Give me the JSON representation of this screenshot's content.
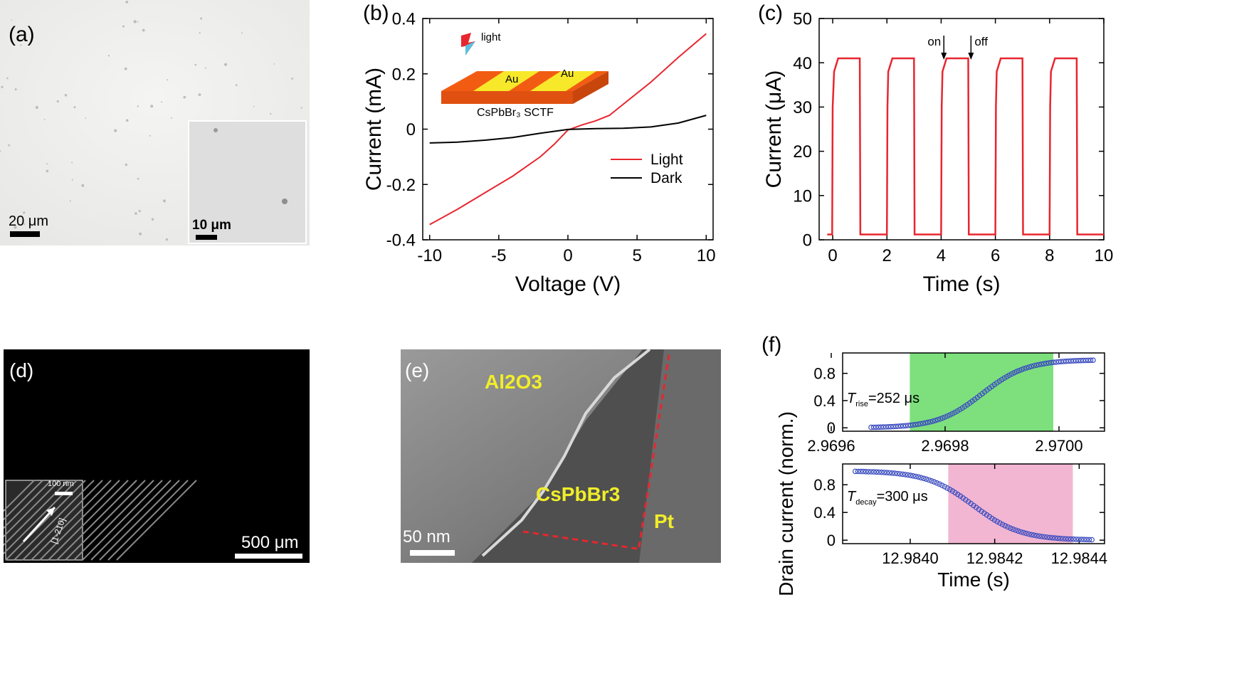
{
  "panels": {
    "a": {
      "label": "(a)",
      "scalebar_main": "20 μm",
      "scalebar_inset": "10 μm"
    },
    "b": {
      "label": "(b)"
    },
    "c": {
      "label": "(c)"
    },
    "d": {
      "label": "(d)",
      "scalebar_main": "500 μm",
      "scalebar_inset": "100 nm",
      "inset_direction": "[1-210]"
    },
    "e": {
      "label": "(e)",
      "scalebar": "50 nm",
      "labels": [
        "Al2O3",
        "CsPbBr3",
        "Pt"
      ]
    },
    "f": {
      "label": "(f)"
    }
  },
  "chart_data": [
    {
      "id": "b",
      "type": "line",
      "xlabel": "Voltage (V)",
      "ylabel": "Current (mA)",
      "xlim": [
        -10.5,
        10.5
      ],
      "ylim": [
        -0.4,
        0.4
      ],
      "xticks": [
        -10,
        -5,
        0,
        5,
        10
      ],
      "xtick_labels": [
        "-10",
        "-5",
        "0",
        "5",
        "10"
      ],
      "yticks": [
        -0.4,
        -0.2,
        0,
        0.2,
        0.4
      ],
      "ytick_labels": [
        "-0.4",
        "-0.2",
        "0",
        "0.2",
        "0.4"
      ],
      "legend_position": "right",
      "inset": {
        "light_label": "light",
        "electrode_label": "Au",
        "film_label": "CsPbBr₃ SCTF"
      },
      "series": [
        {
          "name": "Light",
          "color": "#e8262f",
          "x": [
            -10,
            -8,
            -6,
            -4,
            -2,
            -1,
            0,
            1,
            2,
            3,
            4,
            6,
            8,
            10
          ],
          "y": [
            -0.345,
            -0.29,
            -0.23,
            -0.17,
            -0.1,
            -0.055,
            -0.003,
            0.015,
            0.03,
            0.05,
            0.09,
            0.17,
            0.26,
            0.345
          ]
        },
        {
          "name": "Dark",
          "color": "#000000",
          "x": [
            -10,
            -8,
            -6,
            -4,
            -2,
            0,
            2,
            4,
            6,
            8,
            10
          ],
          "y": [
            -0.05,
            -0.047,
            -0.04,
            -0.03,
            -0.015,
            -0.001,
            0.002,
            0.003,
            0.008,
            0.022,
            0.05
          ]
        }
      ]
    },
    {
      "id": "c",
      "type": "line",
      "xlabel": "Time (s)",
      "ylabel": "Current (μA)",
      "xlim": [
        -0.5,
        10
      ],
      "ylim": [
        0,
        50
      ],
      "xticks": [
        0,
        2,
        4,
        6,
        8,
        10
      ],
      "xtick_labels": [
        "0",
        "2",
        "4",
        "6",
        "8",
        "10"
      ],
      "yticks": [
        0,
        10,
        20,
        30,
        40,
        50
      ],
      "ytick_labels": [
        "0",
        "10",
        "20",
        "30",
        "40",
        "50"
      ],
      "annotations": [
        {
          "text": "on",
          "x": 4.1
        },
        {
          "text": "off",
          "x": 5.1
        }
      ],
      "series": [
        {
          "name": "",
          "color": "#e8262f",
          "x": [
            -0.2,
            -0.02,
            0.0,
            0.05,
            0.2,
            1.0,
            1.02,
            2.0,
            2.02,
            2.05,
            2.2,
            3.0,
            3.02,
            4.0,
            4.02,
            4.05,
            4.2,
            5.0,
            5.02,
            6.0,
            6.02,
            6.05,
            6.2,
            7.0,
            7.02,
            8.0,
            8.02,
            8.05,
            8.2,
            9.0,
            9.02,
            10.0
          ],
          "y": [
            1.2,
            1.2,
            30,
            38,
            41,
            41,
            1.2,
            1.2,
            30,
            38,
            41,
            41,
            1.2,
            1.2,
            30,
            38,
            41,
            41,
            1.2,
            1.2,
            30,
            38,
            41,
            41,
            1.2,
            1.2,
            30,
            38,
            41,
            41,
            1.2,
            1.2
          ]
        }
      ]
    },
    {
      "id": "f-top",
      "type": "scatter",
      "xlabel": "",
      "ylabel": "Drain current (norm.)",
      "xlim": [
        2.96962,
        2.97008
      ],
      "ylim": [
        -0.05,
        1.1
      ],
      "xticks": [
        2.9696,
        2.9698,
        2.97
      ],
      "xtick_labels": [
        "2.9696",
        "2.9698",
        "2.9700"
      ],
      "yticks": [
        0,
        0.4,
        0.8
      ],
      "ytick_labels": [
        "0",
        "0.4",
        "0.8"
      ],
      "annotation": {
        "symbol": "T",
        "subscript": "rise",
        "value": "=252 μs"
      },
      "highlight": {
        "from": 2.969738,
        "to": 2.96999,
        "color": "#7de07d"
      },
      "series": [
        {
          "name": "",
          "color": "#3b4cc0",
          "x_start": 2.96967,
          "x_end": 2.97006,
          "y_start": 0.0,
          "y_end": 1.0,
          "shape": "sigmoid-rise"
        }
      ]
    },
    {
      "id": "f-bottom",
      "type": "scatter",
      "xlabel": "Time (s)",
      "ylabel": "",
      "xlim": [
        12.98384,
        12.98446
      ],
      "ylim": [
        -0.05,
        1.1
      ],
      "xticks": [
        12.984,
        12.9842,
        12.9844
      ],
      "xtick_labels": [
        "12.9840",
        "12.9842",
        "12.9844"
      ],
      "yticks": [
        0,
        0.4,
        0.8
      ],
      "ytick_labels": [
        "0",
        "0.4",
        "0.8"
      ],
      "annotation": {
        "symbol": "T",
        "subscript": "decay",
        "value": "=300 μs"
      },
      "highlight": {
        "from": 12.98409,
        "to": 12.984385,
        "color": "#f2b6d2"
      },
      "series": [
        {
          "name": "",
          "color": "#3b4cc0",
          "x_start": 12.98387,
          "x_end": 12.98443,
          "y_start": 1.0,
          "y_end": 0.0,
          "shape": "sigmoid-decay"
        }
      ]
    }
  ]
}
